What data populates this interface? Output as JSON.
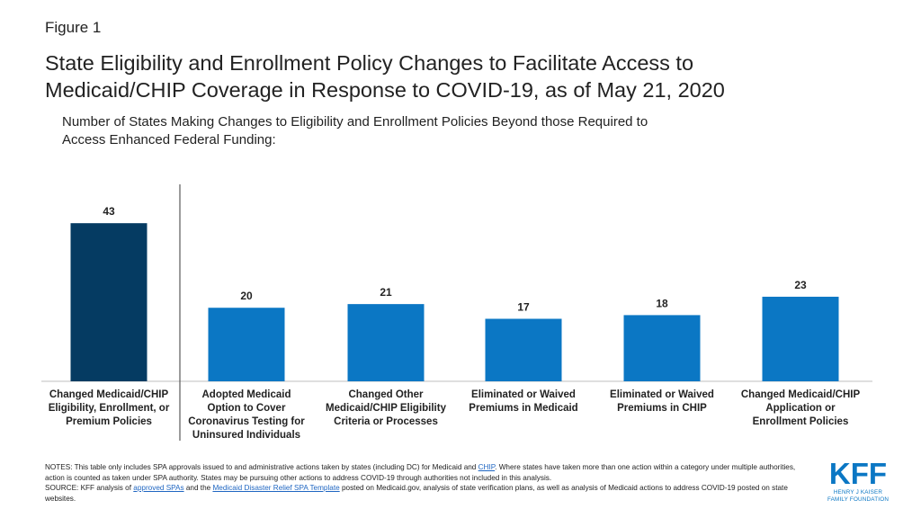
{
  "figure_label": "Figure 1",
  "title_lines": [
    "State Eligibility and Enrollment Policy Changes to Facilitate Access to",
    "Medicaid/CHIP Coverage in Response to COVID-19, as of May 21, 2020"
  ],
  "subtitle_lines": [
    "Number of States Making Changes to Eligibility and Enrollment Policies Beyond those Required to",
    "Access Enhanced Federal Funding:"
  ],
  "colors": {
    "highlight_bar": "#053b62",
    "bar": "#0b77c4",
    "divider": "#595959",
    "axis": "#bfbfbf",
    "link": "#1f66c2",
    "logo": "#0b77c4"
  },
  "chart_data": {
    "type": "bar",
    "categories": [
      [
        "Changed Medicaid/CHIP",
        "Eligibility, Enrollment, or",
        "Premium Policies"
      ],
      [
        "Adopted Medicaid",
        "Option to Cover",
        "Coronavirus Testing for",
        "Uninsured Individuals"
      ],
      [
        "Changed Other",
        "Medicaid/CHIP Eligibility",
        "Criteria or Processes"
      ],
      [
        "Eliminated or Waived",
        "Premiums in Medicaid"
      ],
      [
        "Eliminated or Waived",
        "Premiums in CHIP"
      ],
      [
        "Changed Medicaid/CHIP",
        "Application or",
        "Enrollment Policies"
      ]
    ],
    "values": [
      43,
      20,
      21,
      17,
      18,
      23
    ],
    "highlight_index": 0,
    "value_labels": true,
    "ylim": [
      0,
      45
    ],
    "grid": false,
    "legend": "none"
  },
  "notes": {
    "line1_a": "NOTES: This table only includes SPA approvals issued to and administrative actions taken by states (including DC) for Medicaid and ",
    "line1_link": "CHIP",
    "line1_b": ". Where states have taken more than one action within a category under multiple authorities, action is counted as taken under SPA authority. States may be pursuing other actions to address COVID-19 through authorities not included in this analysis.",
    "source_a": "SOURCE: KFF analysis of ",
    "source_link1": "approved SPAs",
    "source_b": " and the ",
    "source_link2": "Medicaid Disaster Relief SPA Template",
    "source_c": " posted on Medicaid.gov, analysis of state verification plans, as well as analysis of Medicaid actions to address COVID-19 posted on state websites."
  },
  "logo": {
    "mark": "KFF",
    "line1": "HENRY J KAISER",
    "line2": "FAMILY FOUNDATION"
  }
}
